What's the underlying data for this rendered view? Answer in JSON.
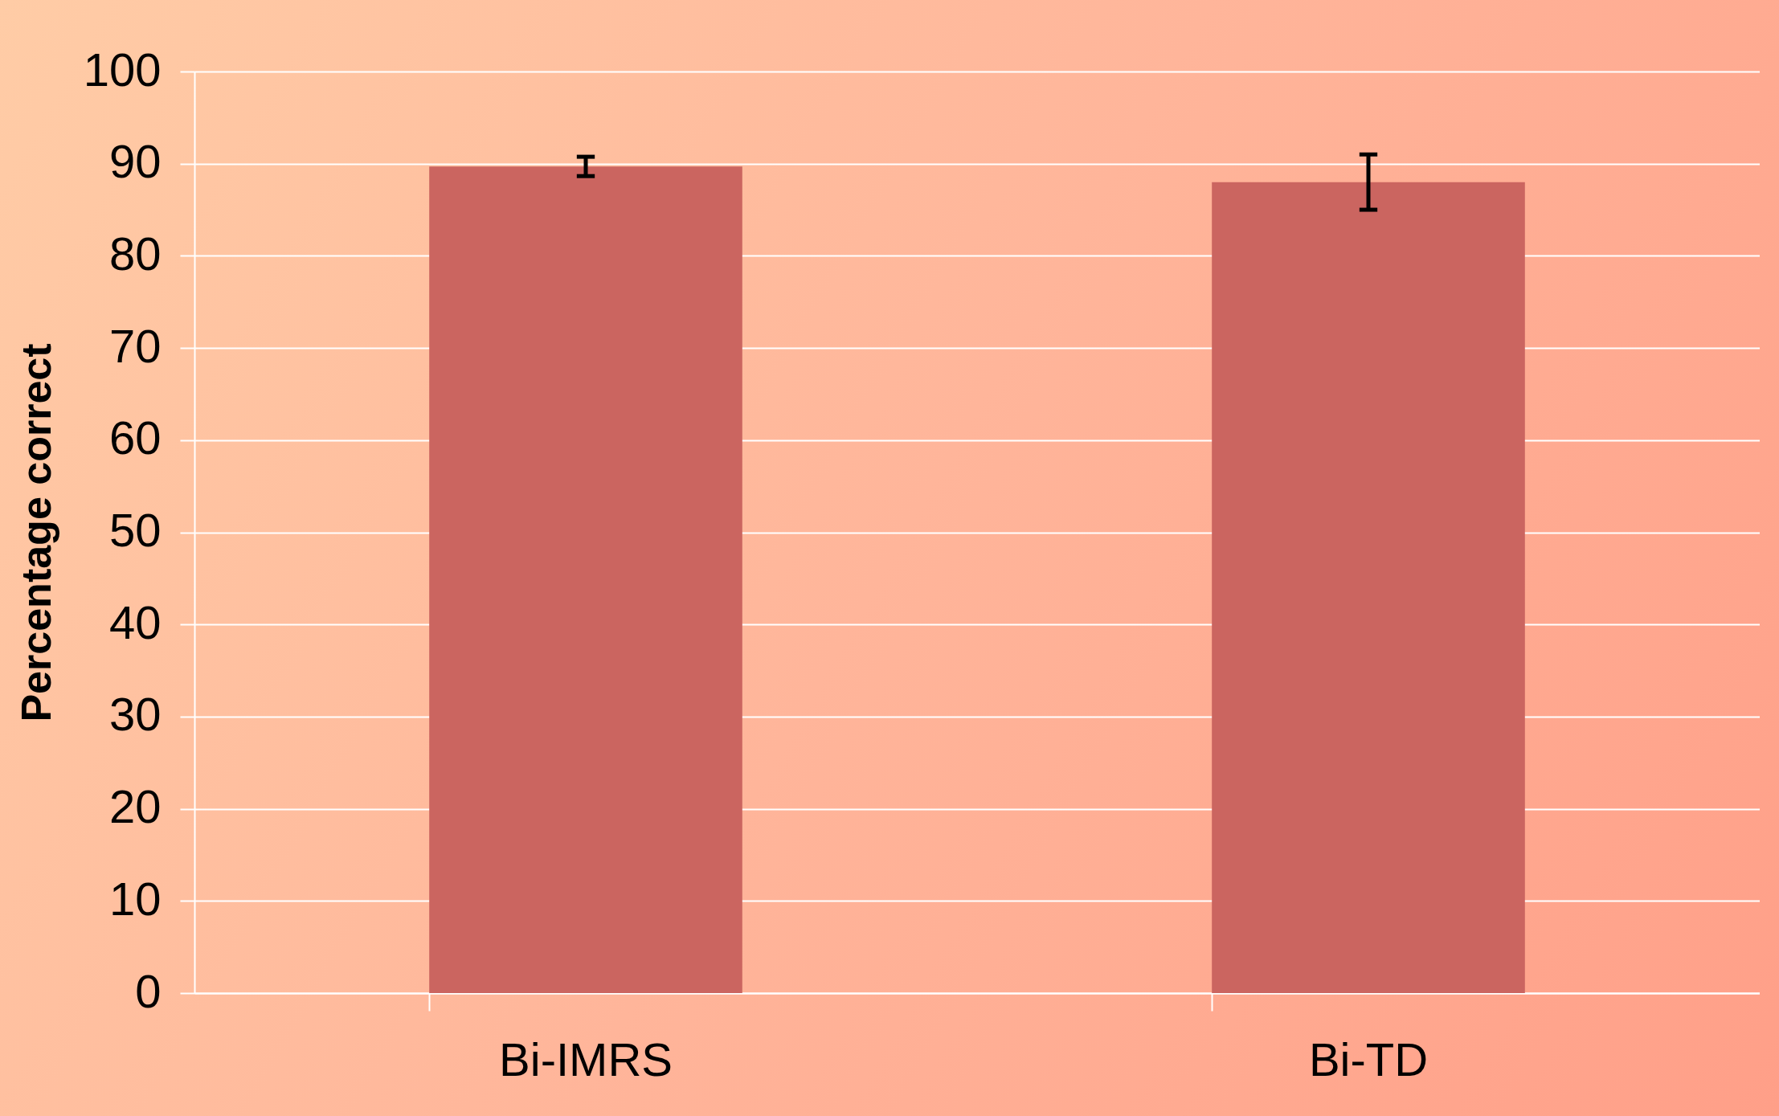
{
  "chart_data": {
    "type": "bar",
    "ylabel": "Percentage correct",
    "categories": [
      "Bi-IMRS",
      "Bi-TD"
    ],
    "values": [
      89.7,
      88.0
    ],
    "errors": [
      1.05,
      3.0
    ],
    "color": "#cb6560",
    "ylim": [
      0,
      100
    ],
    "yticks": [
      0,
      10,
      20,
      30,
      40,
      50,
      60,
      70,
      80,
      90,
      100
    ],
    "grid": "y"
  }
}
